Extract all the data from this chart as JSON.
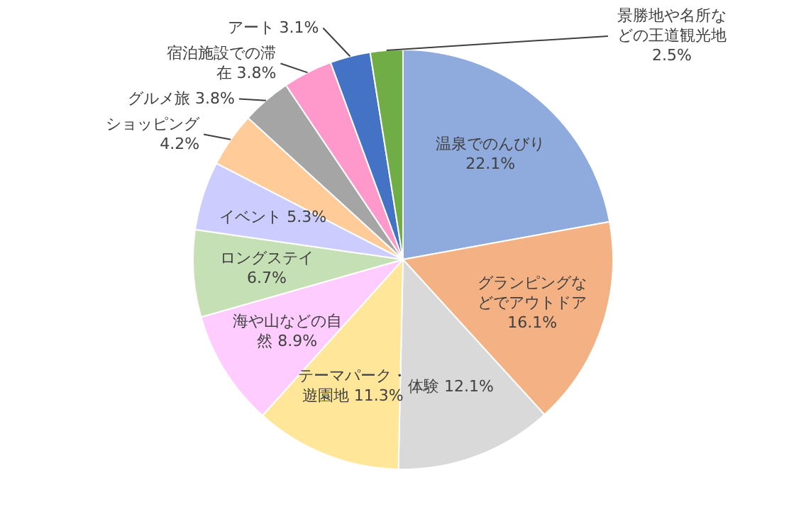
{
  "chart_data": {
    "type": "pie",
    "categories": [
      "温泉でのんびり",
      "グランピングなどでアウトドア",
      "体験",
      "テーマパーク・遊園地",
      "海や山などの自然",
      "ロングステイ",
      "イベント",
      "ショッピング",
      "グルメ旅",
      "宿泊施設での滞在",
      "アート",
      "景勝地や名所などの王道観光地"
    ],
    "values": [
      22.1,
      16.1,
      12.1,
      11.3,
      8.9,
      6.7,
      5.3,
      4.2,
      3.8,
      3.8,
      3.1,
      2.5
    ],
    "value_labels": [
      "22.1%",
      "16.1%",
      "12.1%",
      "11.3%",
      "8.9%",
      "6.7%",
      "5.3%",
      "4.2%",
      "3.8%",
      "3.8%",
      "3.1%",
      "2.5%"
    ],
    "colors": [
      "#8faadc",
      "#f4b183",
      "#d9d9d9",
      "#ffe699",
      "#ffccff",
      "#c5e0b4",
      "#ccccff",
      "#ffcc99",
      "#a5a5a5",
      "#ff99cc",
      "#4472c4",
      "#70ad47"
    ]
  }
}
